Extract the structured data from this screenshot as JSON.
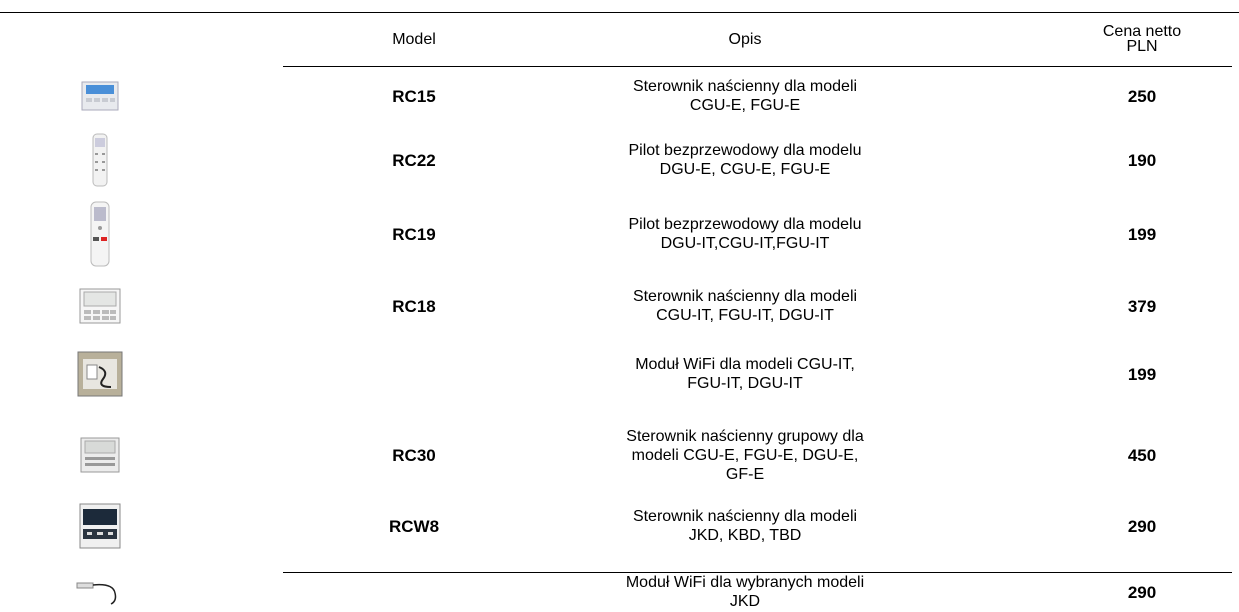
{
  "table": {
    "header": [
      "Model",
      "Opis",
      [
        "Cena netto",
        "PLN"
      ]
    ],
    "rows": [
      {
        "model": "RC15",
        "description": [
          "Sterownik naścienny dla modeli",
          "CGU-E, FGU-E"
        ],
        "price": "250"
      },
      {
        "model": "RC22",
        "description": [
          "Pilot bezprzewodowy dla modelu",
          "DGU-E, CGU-E, FGU-E"
        ],
        "price": "190"
      },
      {
        "model": "RC19",
        "description": [
          "Pilot bezprzewodowy dla modelu",
          "DGU-IT,CGU-IT,FGU-IT"
        ],
        "price": "199"
      },
      {
        "model": "RC18",
        "description": [
          "Sterownik naścienny dla modeli",
          "CGU-IT, FGU-IT, DGU-IT"
        ],
        "price": "379"
      },
      {
        "model": null,
        "description": [
          "Moduł WiFi dla modeli CGU-IT,",
          "FGU-IT, DGU-IT"
        ],
        "price": "199"
      },
      {
        "model": "RC30",
        "description": [
          "Sterownik naścienny grupowy dla",
          "modeli CGU-E, FGU-E, DGU-E,",
          "GF-E"
        ],
        "price": "450"
      },
      {
        "model": "RCW8",
        "description": [
          "Sterownik naścienny dla modeli",
          "JKD, KBD, TBD"
        ],
        "price": "290"
      },
      {
        "model": null,
        "description": [
          "Moduł WiFi dla wybranych modeli",
          "JKD"
        ],
        "price": "290"
      }
    ]
  }
}
